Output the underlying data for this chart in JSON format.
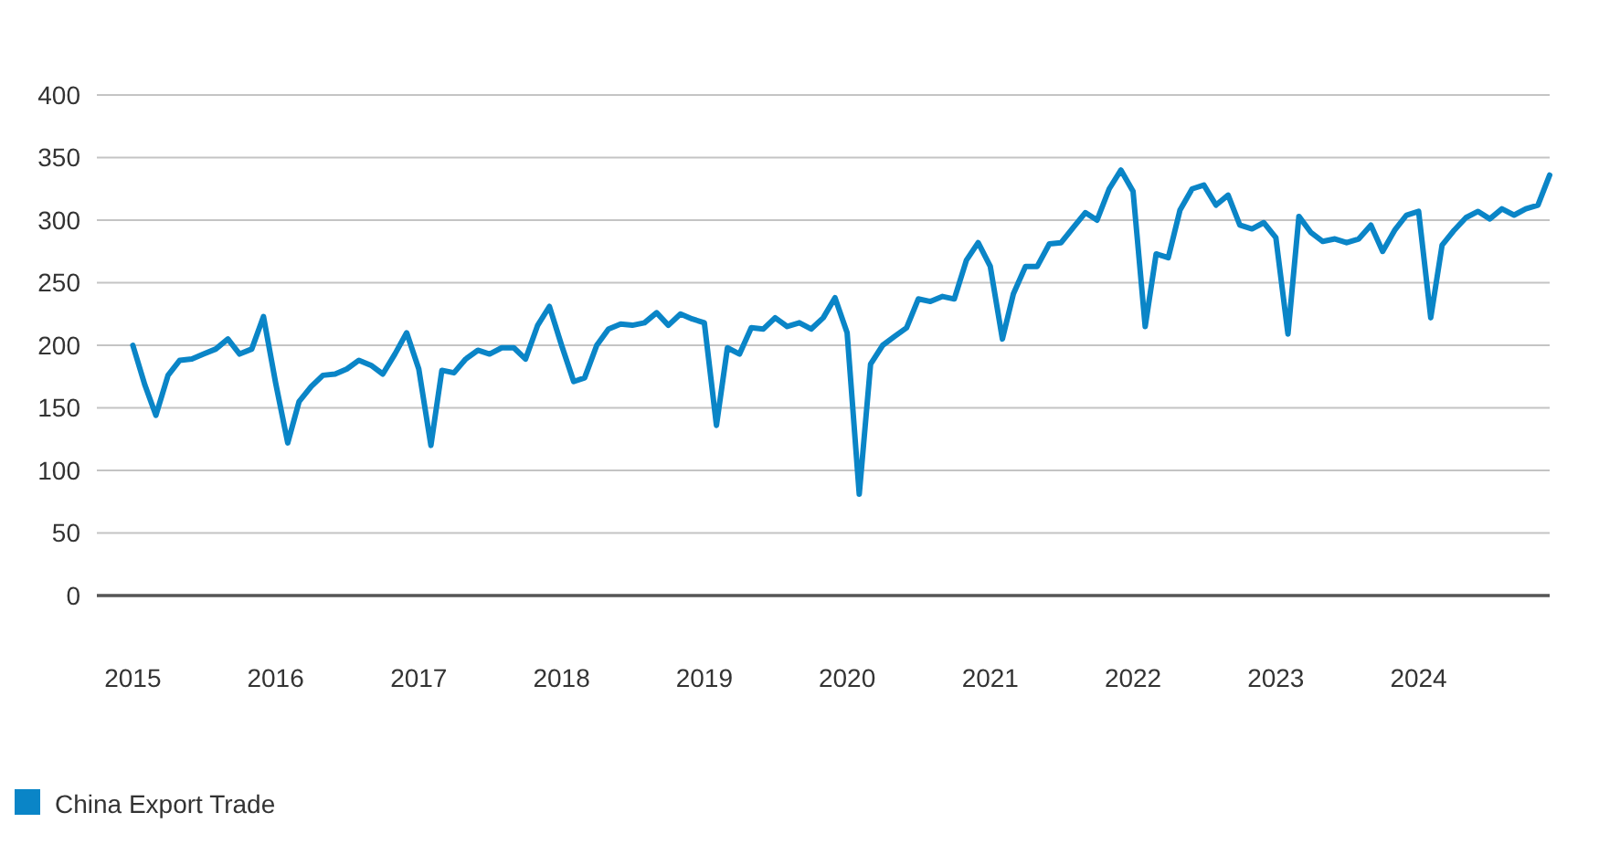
{
  "chart_data": {
    "type": "line",
    "x": [
      "2015-01",
      "2015-02",
      "2015-03",
      "2015-04",
      "2015-05",
      "2015-06",
      "2015-07",
      "2015-08",
      "2015-09",
      "2015-10",
      "2015-11",
      "2015-12",
      "2016-01",
      "2016-02",
      "2016-03",
      "2016-04",
      "2016-05",
      "2016-06",
      "2016-07",
      "2016-08",
      "2016-09",
      "2016-10",
      "2016-11",
      "2016-12",
      "2017-01",
      "2017-02",
      "2017-03",
      "2017-04",
      "2017-05",
      "2017-06",
      "2017-07",
      "2017-08",
      "2017-09",
      "2017-10",
      "2017-11",
      "2017-12",
      "2018-01",
      "2018-02",
      "2018-03",
      "2018-04",
      "2018-05",
      "2018-06",
      "2018-07",
      "2018-08",
      "2018-09",
      "2018-10",
      "2018-11",
      "2018-12",
      "2019-01",
      "2019-02",
      "2019-03",
      "2019-04",
      "2019-05",
      "2019-06",
      "2019-07",
      "2019-08",
      "2019-09",
      "2019-10",
      "2019-11",
      "2019-12",
      "2020-01",
      "2020-02",
      "2020-03",
      "2020-04",
      "2020-05",
      "2020-06",
      "2020-07",
      "2020-08",
      "2020-09",
      "2020-10",
      "2020-11",
      "2020-12",
      "2021-01",
      "2021-02",
      "2021-03",
      "2021-04",
      "2021-05",
      "2021-06",
      "2021-07",
      "2021-08",
      "2021-09",
      "2021-10",
      "2021-11",
      "2021-12",
      "2022-01",
      "2022-02",
      "2022-03",
      "2022-04",
      "2022-05",
      "2022-06",
      "2022-07",
      "2022-08",
      "2022-09",
      "2022-10",
      "2022-11",
      "2022-12",
      "2023-01",
      "2023-02",
      "2023-03",
      "2023-04",
      "2023-05",
      "2023-06",
      "2023-07",
      "2023-08",
      "2023-09",
      "2023-10",
      "2023-11",
      "2023-12",
      "2024-01",
      "2024-02",
      "2024-03",
      "2024-04",
      "2024-05",
      "2024-06",
      "2024-07",
      "2024-08",
      "2024-09",
      "2024-10",
      "2024-11",
      "2024-12"
    ],
    "ylim": [
      0,
      400
    ],
    "yticks": [
      0,
      50,
      100,
      150,
      200,
      250,
      300,
      350,
      400
    ],
    "xticks": [
      {
        "value": "2015-01",
        "label": "2015"
      },
      {
        "value": "2016-01",
        "label": "2016"
      },
      {
        "value": "2017-01",
        "label": "2017"
      },
      {
        "value": "2018-01",
        "label": "2018"
      },
      {
        "value": "2019-01",
        "label": "2019"
      },
      {
        "value": "2020-01",
        "label": "2020"
      },
      {
        "value": "2021-01",
        "label": "2021"
      },
      {
        "value": "2022-01",
        "label": "2022"
      },
      {
        "value": "2023-01",
        "label": "2023"
      },
      {
        "value": "2024-01",
        "label": "2024"
      }
    ],
    "xlim": [
      "2014-10",
      "2024-12"
    ],
    "grid": "y",
    "legend": "bottom left",
    "series": [
      {
        "name": "China Export Trade",
        "color": "#0a85c7",
        "values": [
          200,
          168,
          144,
          176,
          188,
          189,
          193,
          197,
          205,
          193,
          197,
          223,
          170,
          122,
          155,
          167,
          176,
          177,
          181,
          188,
          184,
          177,
          193,
          210,
          181,
          120,
          180,
          178,
          189,
          196,
          193,
          198,
          198,
          189,
          216,
          231,
          200,
          171,
          174,
          200,
          213,
          217,
          216,
          218,
          226,
          216,
          225,
          221,
          218,
          136,
          198,
          193,
          214,
          213,
          222,
          215,
          218,
          213,
          222,
          238,
          210,
          81,
          185,
          200,
          207,
          214,
          237,
          235,
          239,
          237,
          268,
          282,
          263,
          205,
          241,
          263,
          263,
          281,
          282,
          294,
          306,
          300,
          325,
          340,
          323,
          215,
          273,
          270,
          308,
          325,
          328,
          312,
          320,
          296,
          293,
          298,
          286,
          209,
          303,
          290,
          283,
          285,
          282,
          285,
          296,
          275,
          292,
          304,
          307,
          222,
          280,
          292,
          302,
          307,
          301,
          309,
          304,
          309,
          312,
          336
        ]
      }
    ]
  }
}
